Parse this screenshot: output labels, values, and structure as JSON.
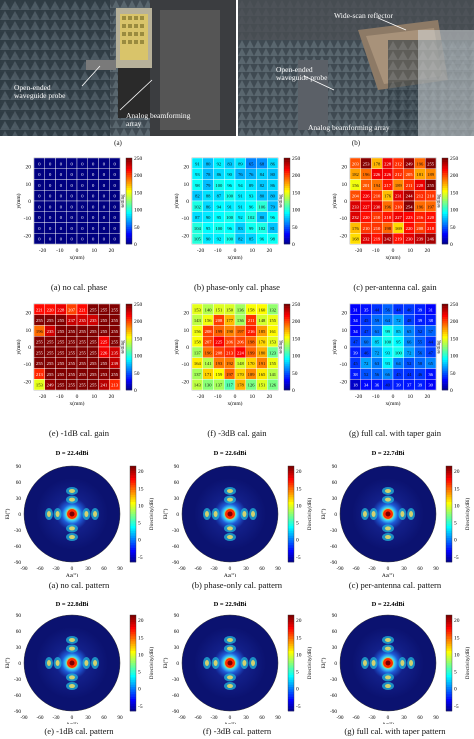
{
  "photos": {
    "left_labels": [
      "Open-ended",
      "waveguide probe"
    ],
    "left_array_label": [
      "Analog beamforming",
      "array"
    ],
    "right_top_label": "Wide-scan reflector",
    "right_probe_label": [
      "Open-ended",
      "waveguide probe"
    ],
    "right_array_label": "Analog beamforming array",
    "left_caption": "(a)",
    "right_caption": "(b)"
  },
  "heatmaps": [
    {
      "caption": "(a) no cal. phase",
      "ylabel": "y(mm)",
      "xlabel": "x(mm)",
      "cbar_label": "setting",
      "cbar_ticks": [
        "250",
        "200",
        "150",
        "100",
        "50",
        "0"
      ],
      "values": [
        [
          0,
          0,
          0,
          0,
          0,
          0,
          0,
          0
        ],
        [
          0,
          0,
          0,
          0,
          0,
          0,
          0,
          0
        ],
        [
          0,
          0,
          0,
          0,
          0,
          0,
          0,
          0
        ],
        [
          0,
          0,
          0,
          0,
          0,
          0,
          0,
          0
        ],
        [
          0,
          0,
          0,
          0,
          0,
          0,
          0,
          0
        ],
        [
          0,
          0,
          0,
          0,
          0,
          0,
          0,
          0
        ],
        [
          0,
          0,
          0,
          0,
          0,
          0,
          0,
          0
        ],
        [
          0,
          0,
          0,
          0,
          0,
          0,
          0,
          0
        ]
      ]
    },
    {
      "caption": "(b) phase-only cal. phase",
      "ylabel": "y(mm)",
      "xlabel": "x(mm)",
      "cbar_label": "setting",
      "cbar_ticks": [
        "250",
        "200",
        "150",
        "100",
        "50",
        "0"
      ],
      "values": [
        [
          91,
          80,
          92,
          83,
          89,
          65,
          68,
          86
        ],
        [
          93,
          78,
          86,
          90,
          76,
          76,
          84,
          80
        ],
        [
          98,
          79,
          100,
          96,
          94,
          89,
          82,
          86
        ],
        [
          82,
          88,
          87,
          100,
          91,
          93,
          80,
          80
        ],
        [
          102,
          86,
          94,
          91,
          91,
          96,
          106,
          79
        ],
        [
          87,
          90,
          95,
          100,
          92,
          102,
          80,
          96
        ],
        [
          104,
          95,
          100,
          96,
          83,
          99,
          102,
          81
        ],
        [
          105,
          90,
          92,
          100,
          82,
          85,
          96,
          98
        ]
      ]
    },
    {
      "caption": "(c) per-antenna cal. gain",
      "ylabel": "y(mm)",
      "xlabel": "x(mm)",
      "cbar_label": "setting",
      "cbar_ticks": [
        "250",
        "200",
        "150",
        "100",
        "50",
        "0"
      ],
      "values": [
        [
          203,
          253,
          178,
          228,
          212,
          249,
          196,
          255
        ],
        [
          182,
          196,
          226,
          226,
          212,
          205,
          181,
          189
        ],
        [
          156,
          201,
          194,
          217,
          189,
          211,
          228,
          255
        ],
        [
          204,
          226,
          210,
          176,
          231,
          244,
          212,
          210
        ],
        [
          233,
          227,
          230,
          196,
          210,
          254,
          196,
          197
        ],
        [
          232,
          220,
          210,
          218,
          227,
          223,
          216,
          220
        ],
        [
          176,
          210,
          210,
          198,
          169,
          220,
          208,
          218
        ],
        [
          168,
          232,
          219,
          242,
          219,
          230,
          239,
          246
        ]
      ]
    },
    {
      "caption": "(e) -1dB cal. gain",
      "ylabel": "y(mm)",
      "xlabel": "x(mm)",
      "cbar_label": "setting",
      "cbar_ticks": [
        "250",
        "200",
        "150",
        "100",
        "50",
        "0"
      ],
      "values": [
        [
          221,
          220,
          228,
          207,
          221,
          255,
          255,
          255
        ],
        [
          255,
          255,
          255,
          237,
          235,
          235,
          255,
          255
        ],
        [
          196,
          235,
          255,
          255,
          255,
          255,
          255,
          255
        ],
        [
          255,
          255,
          255,
          255,
          255,
          255,
          225,
          255
        ],
        [
          255,
          255,
          255,
          255,
          255,
          255,
          226,
          235
        ],
        [
          255,
          255,
          255,
          255,
          255,
          255,
          255,
          239
        ],
        [
          213,
          255,
          255,
          255,
          255,
          255,
          253,
          255
        ],
        [
          153,
          249,
          255,
          255,
          255,
          255,
          241,
          213
        ]
      ]
    },
    {
      "caption": "(f) -3dB cal. gain",
      "ylabel": "y(mm)",
      "xlabel": "x(mm)",
      "cbar_label": "setting",
      "cbar_ticks": [
        "250",
        "200",
        "150",
        "100",
        "50",
        "0"
      ],
      "values": [
        [
          153,
          140,
          151,
          150,
          136,
          158,
          160,
          132
        ],
        [
          143,
          156,
          208,
          177,
          136,
          211,
          148,
          155
        ],
        [
          156,
          208,
          199,
          190,
          197,
          216,
          185,
          161
        ],
        [
          158,
          207,
          225,
          206,
          206,
          198,
          170,
          153
        ],
        [
          137,
          196,
          208,
          213,
          224,
          199,
          180,
          123
        ],
        [
          164,
          141,
          193,
          192,
          148,
          170,
          191,
          155
        ],
        [
          137,
          171,
          159,
          197,
          170,
          189,
          165,
          141
        ],
        [
          143,
          130,
          137,
          117,
          178,
          126,
          151,
          126
        ]
      ]
    },
    {
      "caption": "(g) full cal. with taper gain",
      "ylabel": "y(mm)",
      "xlabel": "x(mm)",
      "cbar_label": "setting",
      "cbar_ticks": [
        "250",
        "200",
        "150",
        "100",
        "50",
        "0"
      ],
      "values": [
        [
          31,
          35,
          44,
          56,
          44,
          46,
          39,
          31
        ],
        [
          34,
          45,
          59,
          64,
          72,
          48,
          39,
          38
        ],
        [
          34,
          47,
          61,
          99,
          85,
          65,
          52,
          57
        ],
        [
          47,
          60,
          85,
          100,
          95,
          66,
          55,
          44
        ],
        [
          39,
          46,
          72,
          93,
          100,
          72,
          56,
          47
        ],
        [
          45,
          72,
          63,
          93,
          64,
          52,
          58,
          65
        ],
        [
          38,
          52,
          56,
          66,
          45,
          44,
          46,
          36
        ],
        [
          18,
          34,
          36,
          40,
          39,
          37,
          39,
          30
        ]
      ]
    }
  ],
  "patterns": [
    {
      "title": "D = 22.4dBi",
      "caption": "(a) no cal. pattern",
      "ylabel": "El(°)",
      "xlabel": "Az(°)",
      "cbar_label": "Directivity(dBi)",
      "cbar_ticks": [
        "20",
        "15",
        "10",
        "5",
        "0",
        "-5"
      ],
      "axis_ticks": [
        "-90",
        "-60",
        "-30",
        "0",
        "30",
        "60",
        "90"
      ]
    },
    {
      "title": "D = 22.6dBi",
      "caption": "(b) phase-only cal. pattern",
      "ylabel": "El(°)",
      "xlabel": "Az(°)",
      "cbar_label": "Directivity(dBi)",
      "cbar_ticks": [
        "20",
        "15",
        "10",
        "5",
        "0",
        "-5"
      ],
      "axis_ticks": [
        "-90",
        "-60",
        "-30",
        "0",
        "30",
        "60",
        "90"
      ]
    },
    {
      "title": "D = 22.7dBi",
      "caption": "(c) per-antenna cal. pattern",
      "ylabel": "El(°)",
      "xlabel": "Az(°)",
      "cbar_label": "Directivity(dBi)",
      "cbar_ticks": [
        "20",
        "15",
        "10",
        "5",
        "0",
        "-5"
      ],
      "axis_ticks": [
        "-90",
        "-60",
        "-30",
        "0",
        "30",
        "60",
        "90"
      ]
    },
    {
      "title": "D = 22.8dBi",
      "caption": "(e) -1dB cal. pattern",
      "ylabel": "El(°)",
      "xlabel": "Az(°)",
      "cbar_label": "Directivity(dBi)",
      "cbar_ticks": [
        "20",
        "15",
        "10",
        "5",
        "0",
        "-5"
      ],
      "axis_ticks": [
        "-90",
        "-60",
        "-30",
        "0",
        "30",
        "60",
        "90"
      ]
    },
    {
      "title": "D = 22.9dBi",
      "caption": "(f) -3dB cal. pattern",
      "ylabel": "El(°)",
      "xlabel": "Az(°)",
      "cbar_label": "Directivity(dBi)",
      "cbar_ticks": [
        "20",
        "15",
        "10",
        "5",
        "0",
        "-5"
      ],
      "axis_ticks": [
        "-90",
        "-60",
        "-30",
        "0",
        "30",
        "60",
        "90"
      ]
    },
    {
      "title": "D = 22.4dBi",
      "caption": "(g) full cal. with taper pattern",
      "ylabel": "El(°)",
      "xlabel": "Az(°)",
      "cbar_label": "Directivity(dBi)",
      "cbar_ticks": [
        "20",
        "15",
        "10",
        "5",
        "0",
        "-5"
      ],
      "axis_ticks": [
        "-90",
        "-60",
        "-30",
        "0",
        "30",
        "60",
        "90"
      ]
    }
  ],
  "heatmap_axis_ticks": [
    "-20",
    "-10",
    "0",
    "10",
    "20"
  ]
}
